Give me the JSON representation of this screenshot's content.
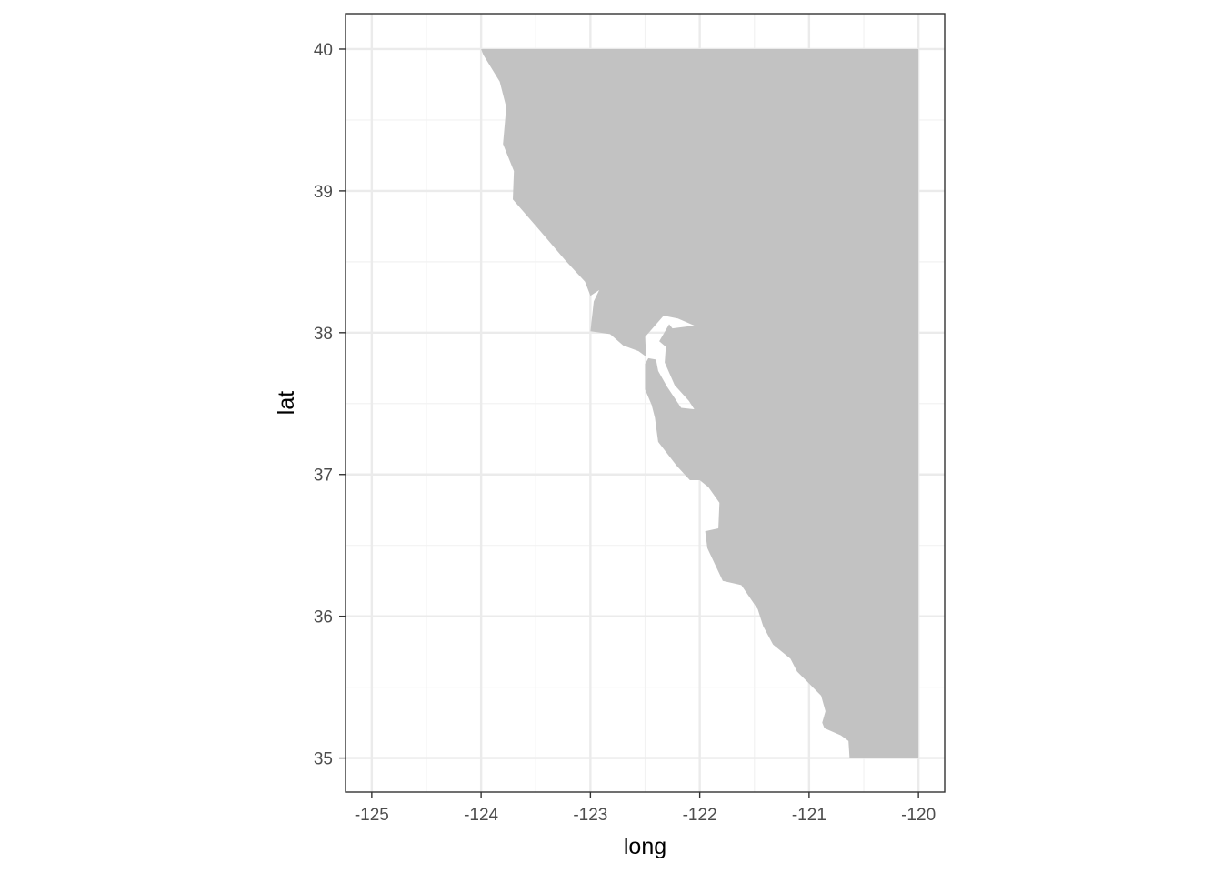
{
  "chart_data": {
    "type": "map",
    "title": "",
    "xlabel": "long",
    "ylabel": "lat",
    "xlim": [
      -125.24,
      -119.76
    ],
    "ylim": [
      34.76,
      40.25
    ],
    "x_ticks": [
      -125,
      -124,
      -123,
      -122,
      -121,
      -120
    ],
    "x_tick_labels": [
      "-125",
      "-124",
      "-123",
      "-122",
      "-121",
      "-120"
    ],
    "y_ticks": [
      35,
      36,
      37,
      38,
      39,
      40
    ],
    "y_tick_labels": [
      "35",
      "36",
      "37",
      "38",
      "39",
      "40"
    ],
    "x_minor_breaks": [
      -124.5,
      -123.5,
      -122.5,
      -121.5,
      -120.5
    ],
    "y_minor_breaks": [
      35.5,
      36.5,
      37.5,
      38.5,
      39.5
    ],
    "grid": true,
    "theme": "bw",
    "colors": {
      "land": "#c2c2c2",
      "panel_background": "#ffffff",
      "grid_major": "#ebebeb",
      "grid_minor": "#f2f2f2",
      "panel_border": "#333333",
      "tick_text": "#4d4d4d"
    },
    "land_polygon": [
      [
        -124.0,
        40.0
      ],
      [
        -120.0,
        40.0
      ],
      [
        -120.0,
        35.0
      ],
      [
        -120.63,
        35.0
      ],
      [
        -120.64,
        35.12
      ],
      [
        -120.71,
        35.16
      ],
      [
        -120.77,
        35.18
      ],
      [
        -120.86,
        35.21
      ],
      [
        -120.88,
        35.25
      ],
      [
        -120.85,
        35.33
      ],
      [
        -120.89,
        35.44
      ],
      [
        -120.98,
        35.51
      ],
      [
        -121.11,
        35.61
      ],
      [
        -121.17,
        35.7
      ],
      [
        -121.33,
        35.8
      ],
      [
        -121.42,
        35.93
      ],
      [
        -121.47,
        36.05
      ],
      [
        -121.62,
        36.22
      ],
      [
        -121.79,
        36.25
      ],
      [
        -121.93,
        36.48
      ],
      [
        -121.95,
        36.6
      ],
      [
        -121.83,
        36.62
      ],
      [
        -121.82,
        36.8
      ],
      [
        -121.92,
        36.91
      ],
      [
        -122.0,
        36.96
      ],
      [
        -122.09,
        36.96
      ],
      [
        -122.21,
        37.06
      ],
      [
        -122.38,
        37.23
      ],
      [
        -122.41,
        37.4
      ],
      [
        -122.44,
        37.49
      ],
      [
        -122.5,
        37.6
      ],
      [
        -122.5,
        37.78
      ],
      [
        -122.47,
        37.82
      ],
      [
        -122.4,
        37.81
      ],
      [
        -122.38,
        37.73
      ],
      [
        -122.3,
        37.62
      ],
      [
        -122.17,
        37.47
      ],
      [
        -122.05,
        37.46
      ],
      [
        -122.1,
        37.52
      ],
      [
        -122.23,
        37.63
      ],
      [
        -122.32,
        37.79
      ],
      [
        -122.31,
        37.9
      ],
      [
        -122.37,
        37.94
      ],
      [
        -122.28,
        38.06
      ],
      [
        -122.25,
        38.03
      ],
      [
        -122.05,
        38.05
      ],
      [
        -122.2,
        38.1
      ],
      [
        -122.33,
        38.12
      ],
      [
        -122.5,
        37.97
      ],
      [
        -122.49,
        37.83
      ],
      [
        -122.56,
        37.87
      ],
      [
        -122.7,
        37.91
      ],
      [
        -122.82,
        37.99
      ],
      [
        -123.0,
        38.01
      ],
      [
        -122.97,
        38.22
      ],
      [
        -122.92,
        38.3
      ],
      [
        -123.0,
        38.26
      ],
      [
        -123.05,
        38.36
      ],
      [
        -123.23,
        38.51
      ],
      [
        -123.44,
        38.7
      ],
      [
        -123.71,
        38.94
      ],
      [
        -123.7,
        39.14
      ],
      [
        -123.8,
        39.33
      ],
      [
        -123.77,
        39.59
      ],
      [
        -123.83,
        39.77
      ],
      [
        -123.98,
        39.96
      ],
      [
        -124.0,
        40.0
      ]
    ]
  }
}
